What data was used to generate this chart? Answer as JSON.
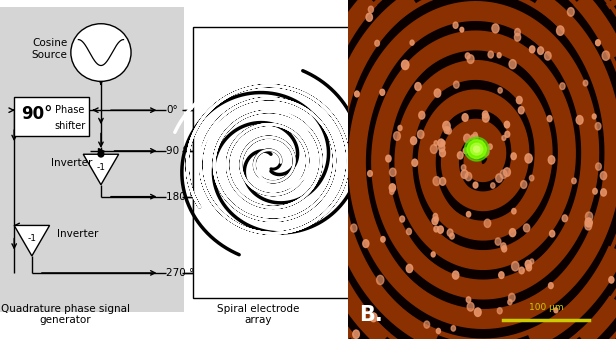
{
  "fig_width": 6.16,
  "fig_height": 3.39,
  "dpi": 100,
  "left_bg": "#d8d8d8",
  "white": "#ffffff",
  "black": "#000000",
  "cosine_label": "Cosine\nSource",
  "phase_label": "Phase\nshifter",
  "inverter1_label": "Inverter",
  "inverter2_label": "Inverter",
  "deg0": "0°",
  "deg90": "90 °",
  "deg180": "180 °",
  "deg270": "270 °",
  "phase_box_label": "90°",
  "inv1_label": "-1",
  "inv2_label": "-1",
  "label_gen": "Quadrature phase signal\ngenerator",
  "label_spiral": "Spiral electrode\narray",
  "scale_bar_text": "100 μm",
  "B_label": "B.",
  "brown_color": "#8B3000",
  "dark_color": "#0a0000",
  "dot_color": "#e8956a",
  "green_color": "#7fff00",
  "scale_color": "#cccc00"
}
